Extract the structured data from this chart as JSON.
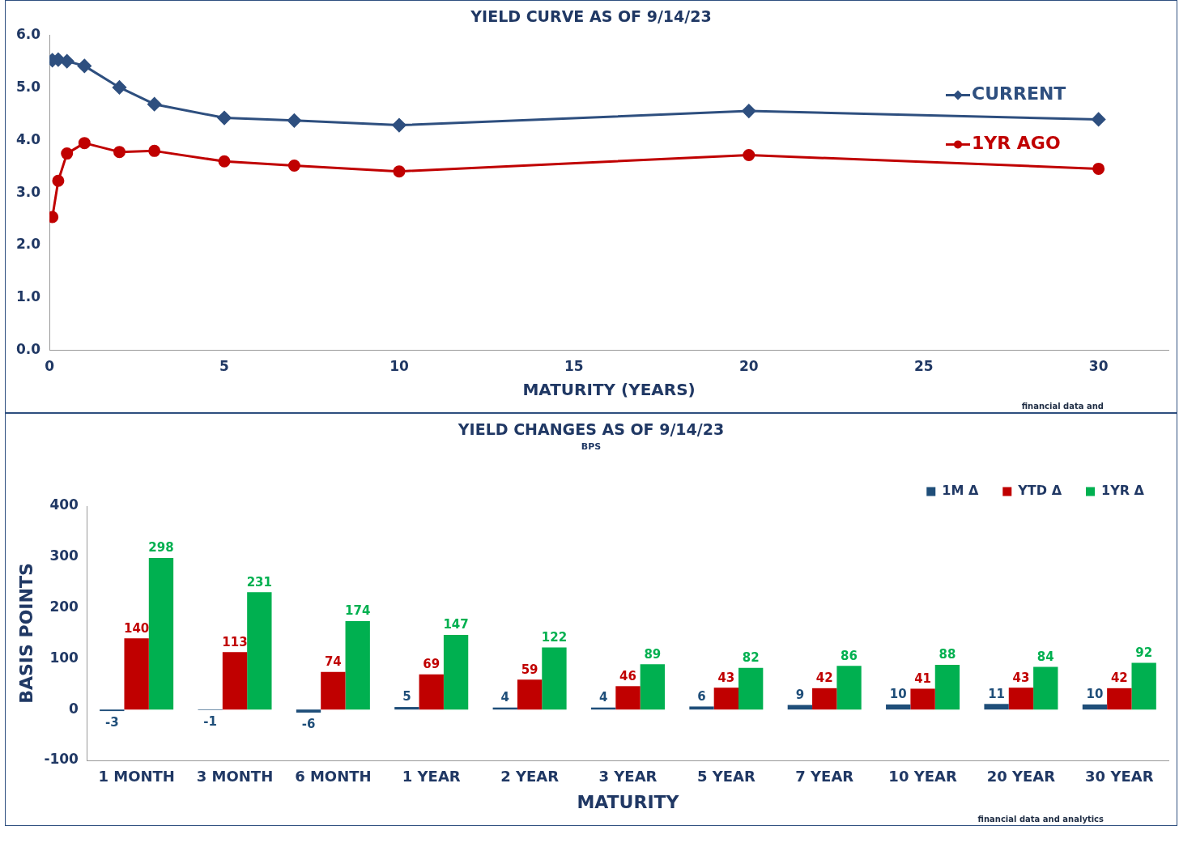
{
  "chart_data": [
    {
      "type": "line",
      "title": "YIELD CURVE AS OF 9/14/23",
      "xlabel": "MATURITY (YEARS)",
      "xlim": [
        0,
        32
      ],
      "xticks": [
        0,
        5,
        10,
        15,
        20,
        25,
        30
      ],
      "ylim": [
        0,
        6
      ],
      "yticks": [
        {
          "value": 0,
          "label": "0.0"
        },
        {
          "value": 1,
          "label": "1.0"
        },
        {
          "value": 2,
          "label": "2.0"
        },
        {
          "value": 3,
          "label": "3.0"
        },
        {
          "value": 4,
          "label": "4.0"
        },
        {
          "value": 5,
          "label": "5.0"
        },
        {
          "value": 6,
          "label": "6.0"
        }
      ],
      "x": [
        0.083,
        0.25,
        0.5,
        1,
        2,
        3,
        5,
        7,
        10,
        20,
        30
      ],
      "series": [
        {
          "name": "CURRENT",
          "color": "#2e4f7f",
          "marker": "diamond",
          "values": [
            5.53,
            5.54,
            5.51,
            5.42,
            5.01,
            4.69,
            4.43,
            4.38,
            4.29,
            4.56,
            4.4
          ]
        },
        {
          "name": "1YR AGO",
          "color": "#c00000",
          "marker": "circle",
          "values": [
            2.54,
            3.23,
            3.75,
            3.95,
            3.78,
            3.8,
            3.6,
            3.52,
            3.41,
            3.72,
            3.46
          ]
        }
      ],
      "legend": "right",
      "annotations": [
        "financial data and"
      ]
    },
    {
      "type": "bar",
      "title": "YIELD CHANGES AS OF 9/14/23",
      "subtitle": "BPS",
      "xlabel": "MATURITY",
      "ylabel": "BASIS POINTS",
      "ylim": [
        -100,
        400
      ],
      "yticks": [
        -100,
        0,
        100,
        200,
        300,
        400
      ],
      "categories": [
        "1 MONTH",
        "3 MONTH",
        "6 MONTH",
        "1 YEAR",
        "2 YEAR",
        "3 YEAR",
        "5 YEAR",
        "7 YEAR",
        "10 YEAR",
        "20 YEAR",
        "30 YEAR"
      ],
      "series": [
        {
          "name": "1M Δ",
          "color": "#1f4e79",
          "values": [
            -3,
            -1,
            -6,
            5,
            4,
            4,
            6,
            9,
            10,
            11,
            10
          ]
        },
        {
          "name": "YTD Δ",
          "color": "#c00000",
          "values": [
            140,
            113,
            74,
            69,
            59,
            46,
            43,
            42,
            41,
            43,
            42
          ]
        },
        {
          "name": "1YR Δ",
          "color": "#00b050",
          "values": [
            298,
            231,
            174,
            147,
            122,
            89,
            82,
            86,
            88,
            84,
            92
          ]
        }
      ],
      "data_labels": true,
      "legend": "top right",
      "annotations": [
        "financial data and analytics"
      ]
    }
  ]
}
